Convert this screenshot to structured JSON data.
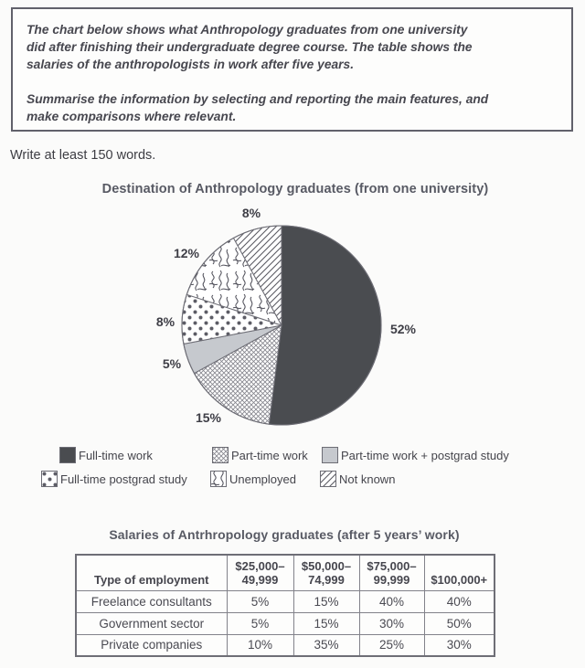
{
  "task_box": {
    "paragraph1_lines": [
      "The chart below shows what Anthropology graduates from one university",
      "did after finishing their undergraduate degree course. The table shows the",
      "salaries of the anthropologists in work after five years."
    ],
    "paragraph2_lines": [
      "Summarise the information by selecting and reporting the main features, and",
      "make comparisons where relevant."
    ]
  },
  "write_note": "Write at least 150 words.",
  "chart_data": [
    {
      "type": "pie",
      "title": "Destination of Anthropology graduates (from one university)",
      "unit": "percent",
      "start": "12 o'clock, clockwise",
      "slices": [
        {
          "label": "Full-time work",
          "value": 52,
          "display": "52%",
          "fill": "dark-solid"
        },
        {
          "label": "Part-time work",
          "value": 15,
          "display": "15%",
          "fill": "crosshatch"
        },
        {
          "label": "Part-time work + postgrad study",
          "value": 5,
          "display": "5%",
          "fill": "light-gray"
        },
        {
          "label": "Full-time postgrad study",
          "value": 8,
          "display": "8%",
          "fill": "dots"
        },
        {
          "label": "Unemployed",
          "value": 12,
          "display": "12%",
          "fill": "squiggle"
        },
        {
          "label": "Not known",
          "value": 8,
          "display": "8%",
          "fill": "diagonal"
        }
      ],
      "colors": {
        "dark-solid": "#4a4c50",
        "light-gray": "#c6c9ce"
      },
      "legend_position": "below, two rows of three"
    },
    {
      "type": "table",
      "title": "Salaries of Antrhropology graduates (after 5 years’ work)",
      "header_lines": [
        [
          "Type of employment"
        ],
        [
          "$25,000–",
          "49,999"
        ],
        [
          "$50,000–",
          "74,999"
        ],
        [
          "$75,000–",
          "99,999"
        ],
        [
          "$100,000+"
        ]
      ],
      "columns": [
        "Type of employment",
        "$25,000–49,999",
        "$50,000–74,999",
        "$75,000–99,999",
        "$100,000+"
      ],
      "rows": [
        {
          "type": "Freelance consultants",
          "values": [
            "5%",
            "15%",
            "40%",
            "40%"
          ]
        },
        {
          "type": "Government sector",
          "values": [
            "5%",
            "15%",
            "30%",
            "50%"
          ]
        },
        {
          "type": "Private companies",
          "values": [
            "10%",
            "35%",
            "25%",
            "30%"
          ]
        }
      ]
    }
  ]
}
